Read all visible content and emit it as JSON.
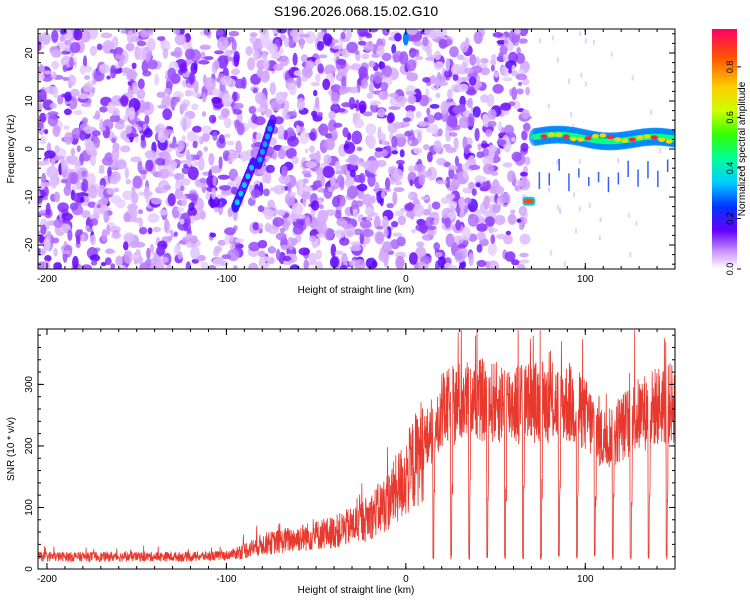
{
  "title": "S196.2026.068.15.02.G10",
  "chart_data": [
    {
      "type": "heatmap",
      "xlabel": "Height of straight line (km)",
      "ylabel": "Frequency (Hz)",
      "xlim": [
        -205,
        150
      ],
      "ylim": [
        -25,
        25
      ],
      "xticks": [
        -200,
        -100,
        0,
        100
      ],
      "yticks": [
        -20,
        -10,
        0,
        10,
        20
      ],
      "colorbar": {
        "label": "Normalized spectral amplitude",
        "range": [
          0,
          0.95
        ],
        "ticks": [
          "0.0",
          "0.2",
          "0.4",
          "0.6",
          "0.8"
        ]
      },
      "features": [
        {
          "x": [
            -95,
            -85
          ],
          "y": [
            -12,
            -3
          ],
          "amplitude": 0.25
        },
        {
          "x": [
            -82,
            -75
          ],
          "y": [
            -3,
            5
          ],
          "amplitude": 0.22
        },
        {
          "x": [
            -2,
            2
          ],
          "y": [
            22,
            24
          ],
          "amplitude": 0.3
        },
        {
          "x": [
            65,
            72
          ],
          "y": [
            -12,
            -11
          ],
          "amplitude": 0.85
        },
        {
          "x": [
            72,
            150
          ],
          "y": [
            1,
            4
          ],
          "amplitude": 0.85
        }
      ]
    },
    {
      "type": "line",
      "xlabel": "Height of straight line (km)",
      "ylabel": "SNR (10 * v/v)",
      "xlim": [
        -205,
        150
      ],
      "ylim": [
        0,
        390
      ],
      "xticks": [
        -200,
        -100,
        0,
        100
      ],
      "yticks": [
        0,
        100,
        200,
        300
      ],
      "color": "#e8392f",
      "x": [
        -205,
        -180,
        -150,
        -120,
        -100,
        -90,
        -80,
        -70,
        -60,
        -50,
        -40,
        -30,
        -20,
        -10,
        0,
        10,
        20,
        30,
        40,
        50,
        60,
        70,
        80,
        90,
        100,
        110,
        120,
        130,
        140,
        150
      ],
      "y": [
        20,
        20,
        20,
        20,
        22,
        30,
        40,
        45,
        50,
        55,
        60,
        70,
        85,
        110,
        150,
        200,
        255,
        270,
        275,
        270,
        270,
        272,
        270,
        270,
        250,
        210,
        230,
        250,
        265,
        270
      ],
      "dips_to": 15,
      "dip_start": 15,
      "dip_spacing": 10
    }
  ]
}
